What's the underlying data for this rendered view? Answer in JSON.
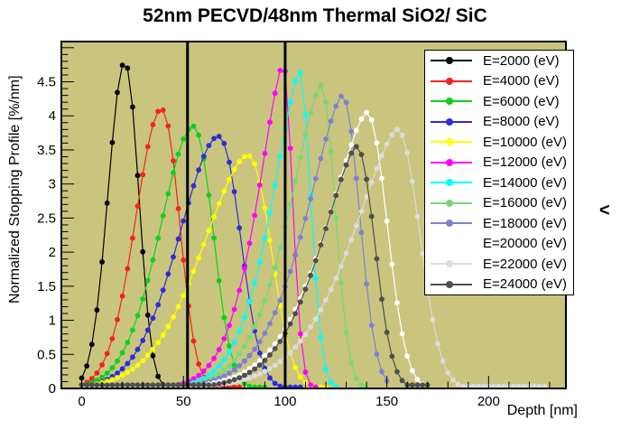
{
  "header": {
    "title": "52nm PECVD/48nm Thermal SiO2/ SiC"
  },
  "misc": {
    "stray_character": "<"
  },
  "chart_data": {
    "type": "line",
    "title": "52nm PECVD/48nm Thermal SiO2/ SiC",
    "xlabel": "Depth [nm]",
    "ylabel": "Normalized Stopping Profile [%/nm]",
    "xlim": [
      -10,
      238
    ],
    "ylim": [
      0,
      5.09
    ],
    "x_major_ticks": [
      0,
      50,
      100,
      150,
      200
    ],
    "x_minor_step_nm": 10,
    "y_major_ticks": [
      0,
      0.5,
      1,
      1.5,
      2,
      2.5,
      3,
      3.5,
      4,
      4.5,
      5
    ],
    "y_labeled_max": 4.5,
    "y_minor_step": 0.1,
    "grid": false,
    "plot_background": "#c9c57e",
    "interface_lines_nm": [
      52,
      100
    ],
    "interface_line_color": "#000000",
    "legend_position": "top-right",
    "marker": "filled-circle",
    "sample_step_nm": 2.5,
    "series": [
      {
        "name": "E=2000 (eV)",
        "energy_eV": 2000,
        "color": "#000000",
        "peak_depth_nm": 21,
        "peak_value": 4.78,
        "sigma_left": 8,
        "sigma_right": 7,
        "k_left": 2.0,
        "k_right": 2.2,
        "depth_range_nm": [
          0,
          45
        ],
        "baseline": 0.02
      },
      {
        "name": "E=4000 (eV)",
        "energy_eV": 4000,
        "color": "#f3231c",
        "peak_depth_nm": 39,
        "peak_value": 4.1,
        "sigma_left": 12.5,
        "sigma_right": 9,
        "k_left": 1.9,
        "k_right": 2.2,
        "depth_range_nm": [
          0,
          78
        ],
        "baseline": 0.02
      },
      {
        "name": "E=6000 (eV)",
        "energy_eV": 6000,
        "color": "#0bd11f",
        "peak_depth_nm": 54.5,
        "peak_value": 3.85,
        "sigma_left": 16,
        "sigma_right": 10,
        "k_left": 1.8,
        "k_right": 2.2,
        "depth_range_nm": [
          0,
          92
        ],
        "baseline": 0.02
      },
      {
        "name": "E=8000 (eV)",
        "energy_eV": 8000,
        "color": "#2c2cdb",
        "peak_depth_nm": 67,
        "peak_value": 3.7,
        "sigma_left": 19,
        "sigma_right": 11,
        "k_left": 1.8,
        "k_right": 2.2,
        "depth_range_nm": [
          0,
          108
        ],
        "baseline": 0.02
      },
      {
        "name": "E=10000 (eV)",
        "energy_eV": 10000,
        "color": "#ffff00",
        "peak_depth_nm": 81.5,
        "peak_value": 3.42,
        "sigma_left": 22,
        "sigma_right": 11.5,
        "k_left": 1.7,
        "k_right": 2.2,
        "depth_range_nm": [
          0,
          120
        ],
        "baseline": 0.02
      },
      {
        "name": "E=12000 (eV)",
        "energy_eV": 12000,
        "color": "#ff00ff",
        "peak_depth_nm": 99,
        "peak_value": 4.77,
        "sigma_left": 12,
        "sigma_right": 4.5,
        "k_left": 1.5,
        "k_right": 2.0,
        "depth_range_nm": [
          0,
          115
        ],
        "baseline": 0.02
      },
      {
        "name": "E=14000 (eV)",
        "energy_eV": 14000,
        "color": "#00ffff",
        "peak_depth_nm": 107,
        "peak_value": 4.65,
        "sigma_left": 13,
        "sigma_right": 5.5,
        "k_left": 1.5,
        "k_right": 2.0,
        "depth_range_nm": [
          0,
          125
        ],
        "baseline": 0.02
      },
      {
        "name": "E=16000 (eV)",
        "energy_eV": 16000,
        "color": "#76d977",
        "peak_depth_nm": 117.5,
        "peak_value": 4.45,
        "sigma_left": 15,
        "sigma_right": 7,
        "k_left": 1.5,
        "k_right": 2.1,
        "depth_range_nm": [
          0,
          140
        ],
        "baseline": 0.02
      },
      {
        "name": "E=18000 (eV)",
        "energy_eV": 18000,
        "color": "#7f7fd4",
        "peak_depth_nm": 128,
        "peak_value": 4.3,
        "sigma_left": 17,
        "sigma_right": 8.5,
        "k_left": 1.5,
        "k_right": 2.1,
        "depth_range_nm": [
          0,
          152
        ],
        "baseline": 0.02
      },
      {
        "name": "E=20000 (eV)",
        "energy_eV": 20000,
        "color": "#ffffff",
        "peak_depth_nm": 140,
        "peak_value": 4.05,
        "sigma_left": 19,
        "sigma_right": 10,
        "k_left": 1.5,
        "k_right": 2.1,
        "depth_range_nm": [
          0,
          168
        ],
        "baseline": 0.02
      },
      {
        "name": "E=22000 (eV)",
        "energy_eV": 22000,
        "color": "#dcdcdc",
        "peak_depth_nm": 155,
        "peak_value": 3.8,
        "sigma_left": 21,
        "sigma_right": 11,
        "k_left": 1.5,
        "k_right": 2.1,
        "depth_range_nm": [
          0,
          229
        ],
        "baseline": 0.03
      },
      {
        "name": "E=24000 (eV)",
        "energy_eV": 24000,
        "color": "#4e4e4e",
        "peak_depth_nm": 135,
        "peak_value": 3.55,
        "sigma_left": 17,
        "sigma_right": 9,
        "k_left": 1.5,
        "k_right": 2.1,
        "depth_range_nm": [
          0,
          171
        ],
        "baseline": 0.05
      }
    ]
  }
}
